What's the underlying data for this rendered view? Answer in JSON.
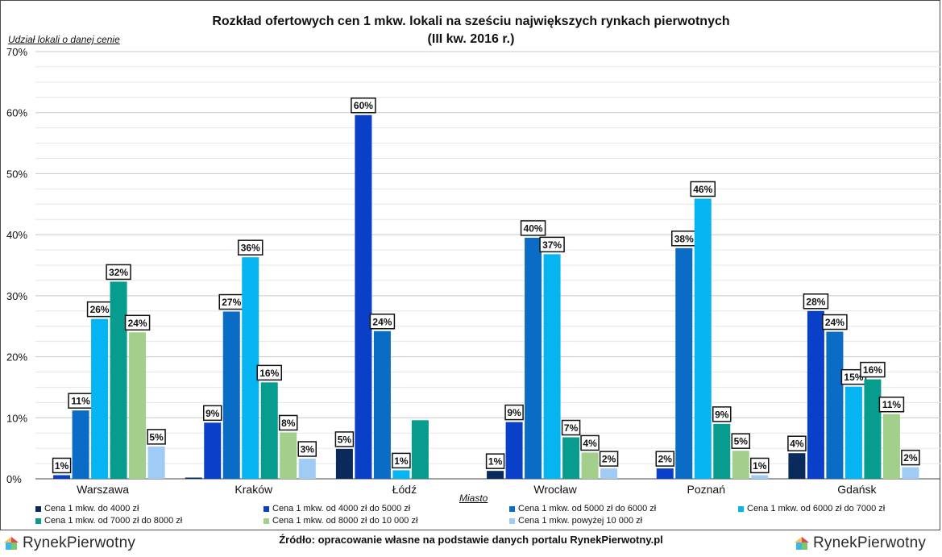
{
  "title_line1": "Rozkład ofertowych cen 1 mkw. lokali na sześciu największych rynkach pierwotnych",
  "title_line2": "(III kw. 2016 r.)",
  "source": "Źródło: opracowanie własne na podstawie danych portalu RynekPierwotny.pl",
  "logo_text": "RynekPierwotny",
  "chart_data": {
    "type": "bar",
    "title": "Rozkład ofertowych cen 1 mkw. lokali na sześciu największych rynkach pierwotnych (III kw. 2016 r.)",
    "ylabel": "Udział lokali o danej cenie",
    "xlabel": "Miasto",
    "ylim": [
      0,
      70
    ],
    "yticks": [
      "0%",
      "10%",
      "20%",
      "30%",
      "40%",
      "50%",
      "60%",
      "70%"
    ],
    "ytick_values": [
      0,
      10,
      20,
      30,
      40,
      50,
      60,
      70
    ],
    "grid": true,
    "legend_position": "bottom",
    "categories": [
      "Warszawa",
      "Kraków",
      "Łódź",
      "Wrocław",
      "Poznań",
      "Gdańsk"
    ],
    "series": [
      {
        "name": "Cena 1 mkw. do 4000 zł",
        "color": "#0b2a5c",
        "values": [
          0,
          0.2,
          4.9,
          1.3,
          0,
          4.2
        ],
        "labels": [
          "",
          "",
          "5%",
          "1%",
          "",
          "4%"
        ]
      },
      {
        "name": "Cena 1 mkw. od 4000 zł do 5000 zł",
        "color": "#0a3fc8",
        "values": [
          0.6,
          9.2,
          59.6,
          9.3,
          1.7,
          27.5
        ],
        "labels": [
          "1%",
          "9%",
          "60%",
          "9%",
          "2%",
          "28%"
        ]
      },
      {
        "name": "Cena 1 mkw. od 5000 zł do 6000 zł",
        "color": "#0a6cc4",
        "values": [
          11.2,
          27.4,
          24.2,
          39.5,
          37.8,
          24.1
        ],
        "labels": [
          "11%",
          "27%",
          "24%",
          "40%",
          "38%",
          "24%"
        ]
      },
      {
        "name": "Cena 1 mkw. od 6000 zł do 7000 zł",
        "color": "#05b4f0",
        "values": [
          26.2,
          36.3,
          1.4,
          36.8,
          45.9,
          15.1
        ],
        "labels": [
          "26%",
          "36%",
          "1%",
          "37%",
          "46%",
          "15%"
        ]
      },
      {
        "name": "Cena 1 mkw. od 7000 zł do 8000 zł",
        "color": "#089c8e",
        "values": [
          32.3,
          15.8,
          9.6,
          6.8,
          9.0,
          16.3
        ],
        "labels": [
          "32%",
          "16%",
          "",
          "7%",
          "9%",
          "16%"
        ]
      },
      {
        "name": "Cena 1 mkw. od 8000 zł do 10 000 zł",
        "color": "#a3cf8c",
        "values": [
          24.0,
          7.6,
          0,
          4.3,
          4.6,
          10.6
        ],
        "labels": [
          "24%",
          "8%",
          "",
          "4%",
          "5%",
          "11%"
        ]
      },
      {
        "name": "Cena 1 mkw. powyżej 10 000 zł",
        "color": "#9fcbf5",
        "values": [
          5.3,
          3.3,
          0,
          1.7,
          0.6,
          1.9
        ],
        "labels": [
          "5%",
          "3%",
          "",
          "2%",
          "1%",
          "2%"
        ]
      }
    ]
  }
}
